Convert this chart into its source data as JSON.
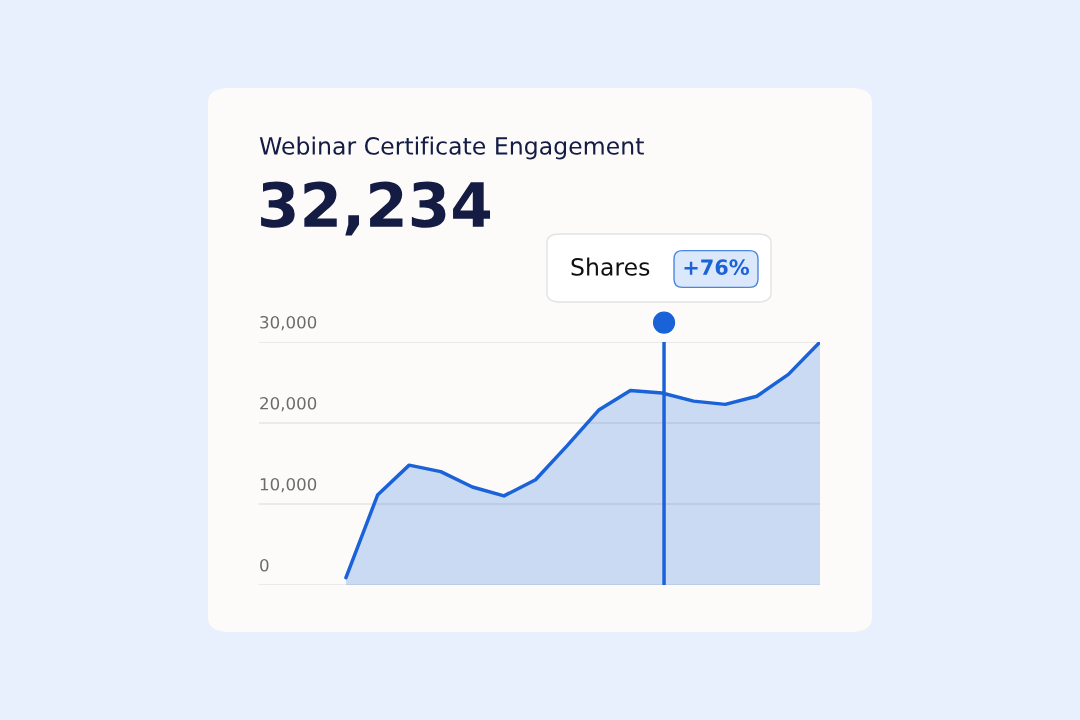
{
  "chart_data": {
    "type": "area",
    "title": "Webinar Certificate Engagement",
    "subtitle": "32,234",
    "categories": [
      null,
      null,
      null,
      null,
      null,
      null,
      null,
      null,
      null,
      null,
      null,
      null,
      null,
      null,
      null,
      null
    ],
    "series": [
      {
        "color": "#1a62d8",
        "values": [
          900,
          11100,
          14800,
          14000,
          12100,
          11000,
          13000,
          17200,
          21600,
          24000,
          23700,
          22700,
          22300,
          23300,
          26000,
          30000
        ]
      }
    ],
    "ylim": [
      0,
      30000
    ],
    "yticks": [
      {
        "value": 0,
        "label": "0"
      },
      {
        "value": 10000,
        "label": "10,000"
      },
      {
        "value": 20000,
        "label": "20,000"
      },
      {
        "value": 30000,
        "label": "30,000"
      }
    ],
    "grid": "y",
    "tick_labels": "y",
    "annotations": [
      "Shares",
      "+76%"
    ]
  }
}
